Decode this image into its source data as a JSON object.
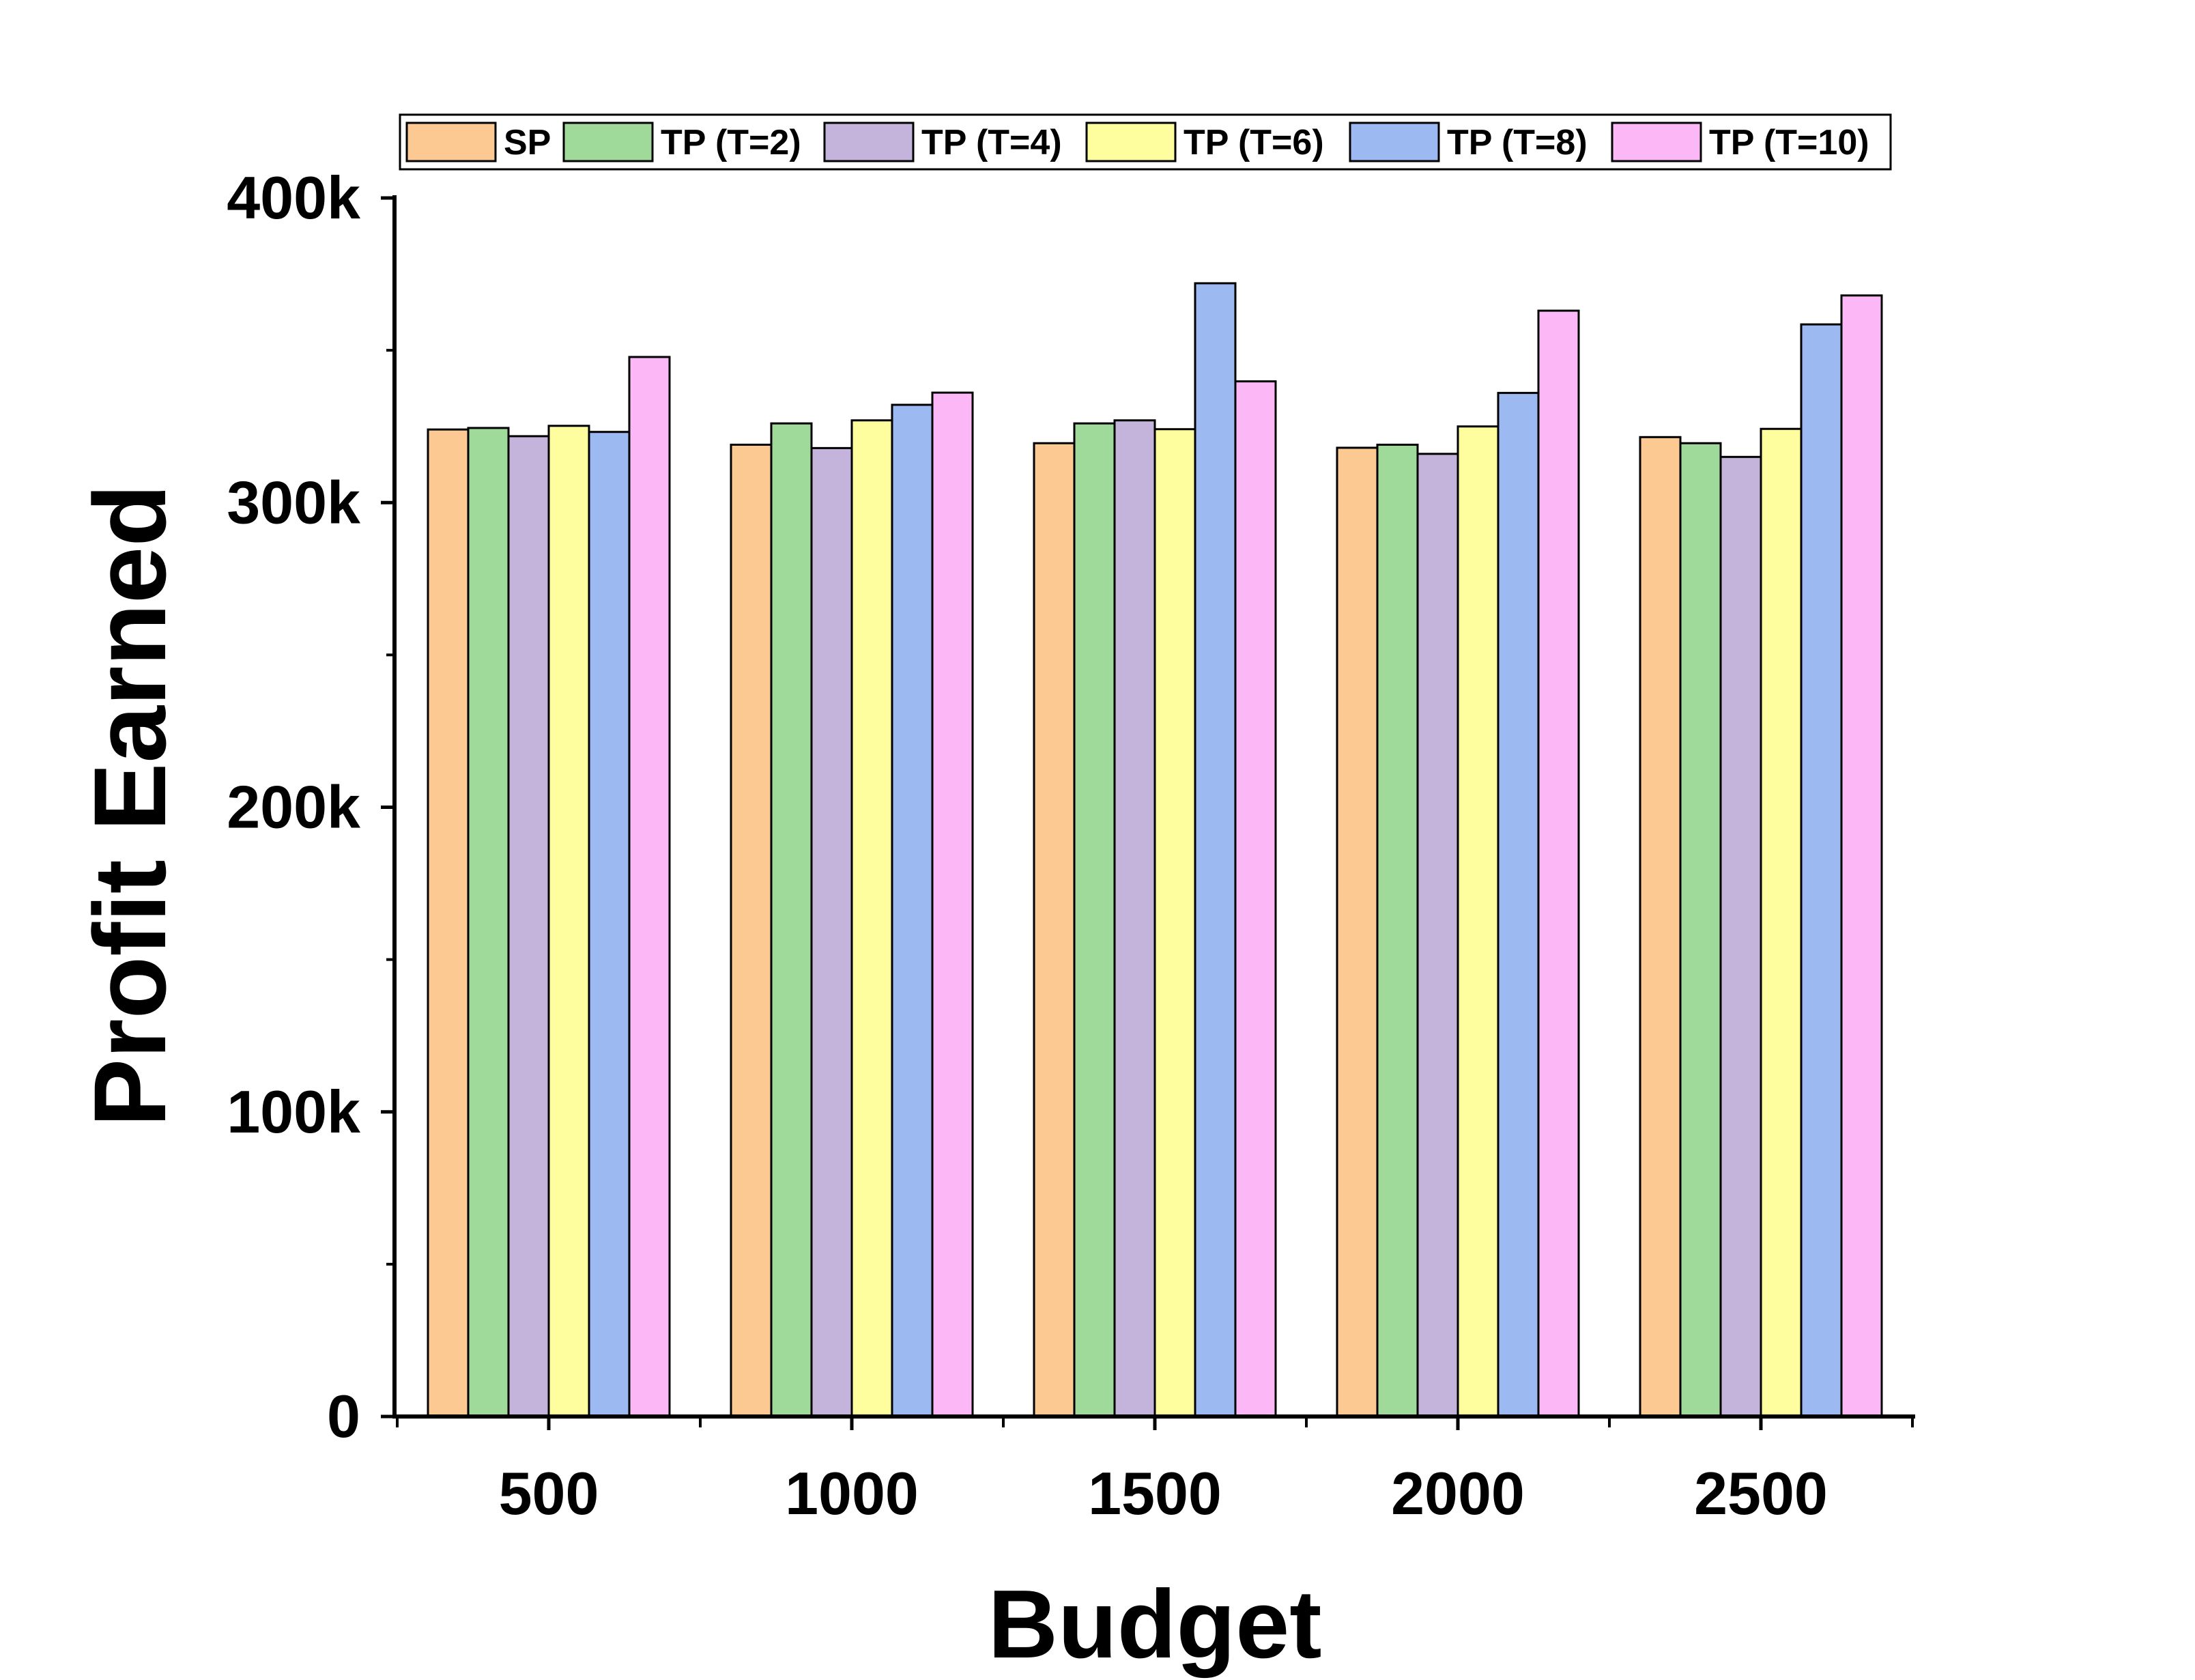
{
  "chart_data": {
    "type": "bar",
    "xlabel": "Budget",
    "ylabel": "Profit Earned",
    "categories": [
      "500",
      "1000",
      "1500",
      "2000",
      "2500"
    ],
    "ylim": [
      0,
      400000
    ],
    "y_ticks": [
      {
        "value": 0,
        "label": "0"
      },
      {
        "value": 100000,
        "label": "100k"
      },
      {
        "value": 200000,
        "label": "200k"
      },
      {
        "value": 300000,
        "label": "300k"
      },
      {
        "value": 400000,
        "label": "400k"
      }
    ],
    "grid": false,
    "legend_position": "top",
    "series": [
      {
        "name": "SP",
        "color": "#FBC991",
        "values": [
          324000,
          319000,
          319500,
          318000,
          321500
        ]
      },
      {
        "name": "TP (T=2)",
        "color": "#A0DA9B",
        "values": [
          324500,
          326000,
          326000,
          319000,
          319500
        ]
      },
      {
        "name": "TP (T=4)",
        "color": "#C4B3DA",
        "values": [
          321800,
          317900,
          327000,
          316000,
          315000
        ]
      },
      {
        "name": "TP (T=6)",
        "color": "#FEFE9E",
        "values": [
          325200,
          327000,
          324100,
          325000,
          324200
        ]
      },
      {
        "name": "TP (T=8)",
        "color": "#9DB9F2",
        "values": [
          323200,
          332100,
          372000,
          336000,
          358500
        ]
      },
      {
        "name": "TP (T=10)",
        "color": "#FCB8F6",
        "values": [
          347800,
          336100,
          339800,
          363000,
          368000
        ]
      }
    ]
  }
}
